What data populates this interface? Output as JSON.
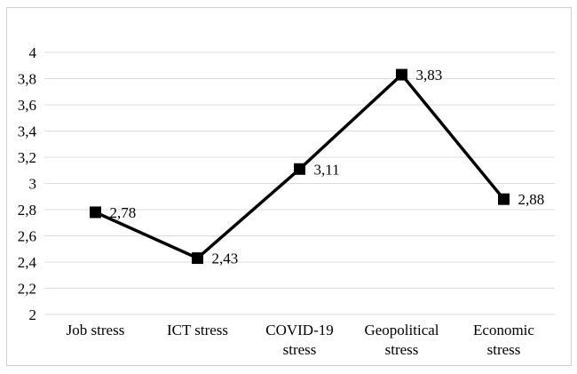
{
  "chart_data": {
    "type": "line",
    "title": "",
    "xlabel": "",
    "ylabel": "",
    "categories": [
      "Job stress",
      "ICT stress",
      "COVID-19 stress",
      "Geopolitical stress",
      "Economic stress"
    ],
    "category_lines": [
      [
        "Job stress"
      ],
      [
        "ICT stress"
      ],
      [
        "COVID-19",
        "stress"
      ],
      [
        "Geopolitical",
        "stress"
      ],
      [
        "Economic",
        "stress"
      ]
    ],
    "values": [
      2.78,
      2.43,
      3.11,
      3.83,
      2.88
    ],
    "data_labels": [
      "2,78",
      "2,43",
      "3,11",
      "3,83",
      "2,88"
    ],
    "y_ticks": [
      "4",
      "3,8",
      "3,6",
      "3,4",
      "3,2",
      "3",
      "2,8",
      "2,6",
      "2,4",
      "2,2",
      "2"
    ],
    "ylim": [
      2,
      4
    ],
    "y_step": 0.2,
    "grid": true,
    "legend": "none",
    "marker": "square",
    "colors": {
      "line": "#000000",
      "marker": "#000000",
      "gridline": "#dcdcdc",
      "frame": "#d0d0d0",
      "text": "#000000",
      "background": "#ffffff"
    }
  }
}
